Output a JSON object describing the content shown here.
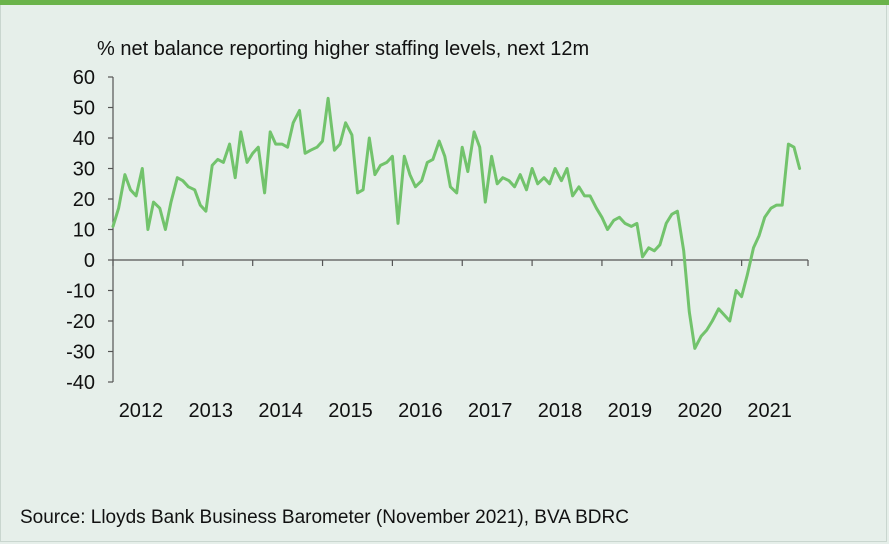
{
  "chart_data": {
    "type": "line",
    "title": "% net balance reporting higher staffing levels, next 12m",
    "xlabel": "",
    "ylabel": "",
    "ylim": [
      -40,
      60
    ],
    "yticks": [
      60,
      50,
      40,
      30,
      20,
      10,
      0,
      -10,
      -20,
      -30,
      -40
    ],
    "xlim": [
      2012,
      2021.95
    ],
    "xticks": [
      "2012",
      "2013",
      "2014",
      "2015",
      "2016",
      "2017",
      "2018",
      "2019",
      "2020",
      "2021"
    ],
    "grid": false,
    "legend": "none",
    "line_color": "#72c36c",
    "series": [
      {
        "values": [
          [
            2012.0,
            11
          ],
          [
            2012.08,
            17
          ],
          [
            2012.17,
            28
          ],
          [
            2012.25,
            23
          ],
          [
            2012.33,
            21
          ],
          [
            2012.42,
            30
          ],
          [
            2012.5,
            10
          ],
          [
            2012.58,
            19
          ],
          [
            2012.67,
            17
          ],
          [
            2012.75,
            10
          ],
          [
            2012.83,
            19
          ],
          [
            2012.92,
            27
          ],
          [
            2013.0,
            26
          ],
          [
            2013.08,
            24
          ],
          [
            2013.17,
            23
          ],
          [
            2013.25,
            18
          ],
          [
            2013.33,
            16
          ],
          [
            2013.42,
            31
          ],
          [
            2013.5,
            33
          ],
          [
            2013.58,
            32
          ],
          [
            2013.67,
            38
          ],
          [
            2013.75,
            27
          ],
          [
            2013.83,
            42
          ],
          [
            2013.92,
            32
          ],
          [
            2014.0,
            35
          ],
          [
            2014.08,
            37
          ],
          [
            2014.17,
            22
          ],
          [
            2014.25,
            42
          ],
          [
            2014.33,
            38
          ],
          [
            2014.42,
            38
          ],
          [
            2014.5,
            37
          ],
          [
            2014.58,
            45
          ],
          [
            2014.67,
            49
          ],
          [
            2014.75,
            35
          ],
          [
            2014.83,
            36
          ],
          [
            2014.92,
            37
          ],
          [
            2015.0,
            39
          ],
          [
            2015.08,
            53
          ],
          [
            2015.17,
            36
          ],
          [
            2015.25,
            38
          ],
          [
            2015.33,
            45
          ],
          [
            2015.42,
            41
          ],
          [
            2015.5,
            22
          ],
          [
            2015.58,
            23
          ],
          [
            2015.67,
            40
          ],
          [
            2015.75,
            28
          ],
          [
            2015.83,
            31
          ],
          [
            2015.92,
            32
          ],
          [
            2016.0,
            34
          ],
          [
            2016.08,
            12
          ],
          [
            2016.17,
            34
          ],
          [
            2016.25,
            28
          ],
          [
            2016.33,
            24
          ],
          [
            2016.42,
            26
          ],
          [
            2016.5,
            32
          ],
          [
            2016.58,
            33
          ],
          [
            2016.67,
            39
          ],
          [
            2016.75,
            34
          ],
          [
            2016.83,
            24
          ],
          [
            2016.92,
            22
          ],
          [
            2017.0,
            37
          ],
          [
            2017.08,
            29
          ],
          [
            2017.17,
            42
          ],
          [
            2017.25,
            37
          ],
          [
            2017.33,
            19
          ],
          [
            2017.42,
            34
          ],
          [
            2017.5,
            25
          ],
          [
            2017.58,
            27
          ],
          [
            2017.67,
            26
          ],
          [
            2017.75,
            24
          ],
          [
            2017.83,
            28
          ],
          [
            2017.92,
            23
          ],
          [
            2018.0,
            30
          ],
          [
            2018.08,
            25
          ],
          [
            2018.17,
            27
          ],
          [
            2018.25,
            25
          ],
          [
            2018.33,
            30
          ],
          [
            2018.42,
            26
          ],
          [
            2018.5,
            30
          ],
          [
            2018.58,
            21
          ],
          [
            2018.67,
            24
          ],
          [
            2018.75,
            21
          ],
          [
            2018.83,
            21
          ],
          [
            2018.92,
            17
          ],
          [
            2019.0,
            14
          ],
          [
            2019.08,
            10
          ],
          [
            2019.17,
            13
          ],
          [
            2019.25,
            14
          ],
          [
            2019.33,
            12
          ],
          [
            2019.42,
            11
          ],
          [
            2019.5,
            12
          ],
          [
            2019.58,
            1
          ],
          [
            2019.67,
            4
          ],
          [
            2019.75,
            3
          ],
          [
            2019.83,
            5
          ],
          [
            2019.92,
            12
          ],
          [
            2020.0,
            15
          ],
          [
            2020.08,
            16
          ],
          [
            2020.17,
            3
          ],
          [
            2020.25,
            -17
          ],
          [
            2020.33,
            -29
          ],
          [
            2020.42,
            -25
          ],
          [
            2020.5,
            -23
          ],
          [
            2020.58,
            -20
          ],
          [
            2020.67,
            -16
          ],
          [
            2020.75,
            -18
          ],
          [
            2020.83,
            -20
          ],
          [
            2020.92,
            -10
          ],
          [
            2021.0,
            -12
          ],
          [
            2021.08,
            -5
          ],
          [
            2021.17,
            4
          ],
          [
            2021.25,
            8
          ],
          [
            2021.33,
            14
          ],
          [
            2021.42,
            17
          ],
          [
            2021.5,
            18
          ],
          [
            2021.58,
            18
          ],
          [
            2021.67,
            38
          ],
          [
            2021.75,
            37
          ],
          [
            2021.83,
            30
          ]
        ]
      }
    ]
  },
  "source": "Source: Lloyds Bank Business Barometer (November 2021), BVA BDRC"
}
